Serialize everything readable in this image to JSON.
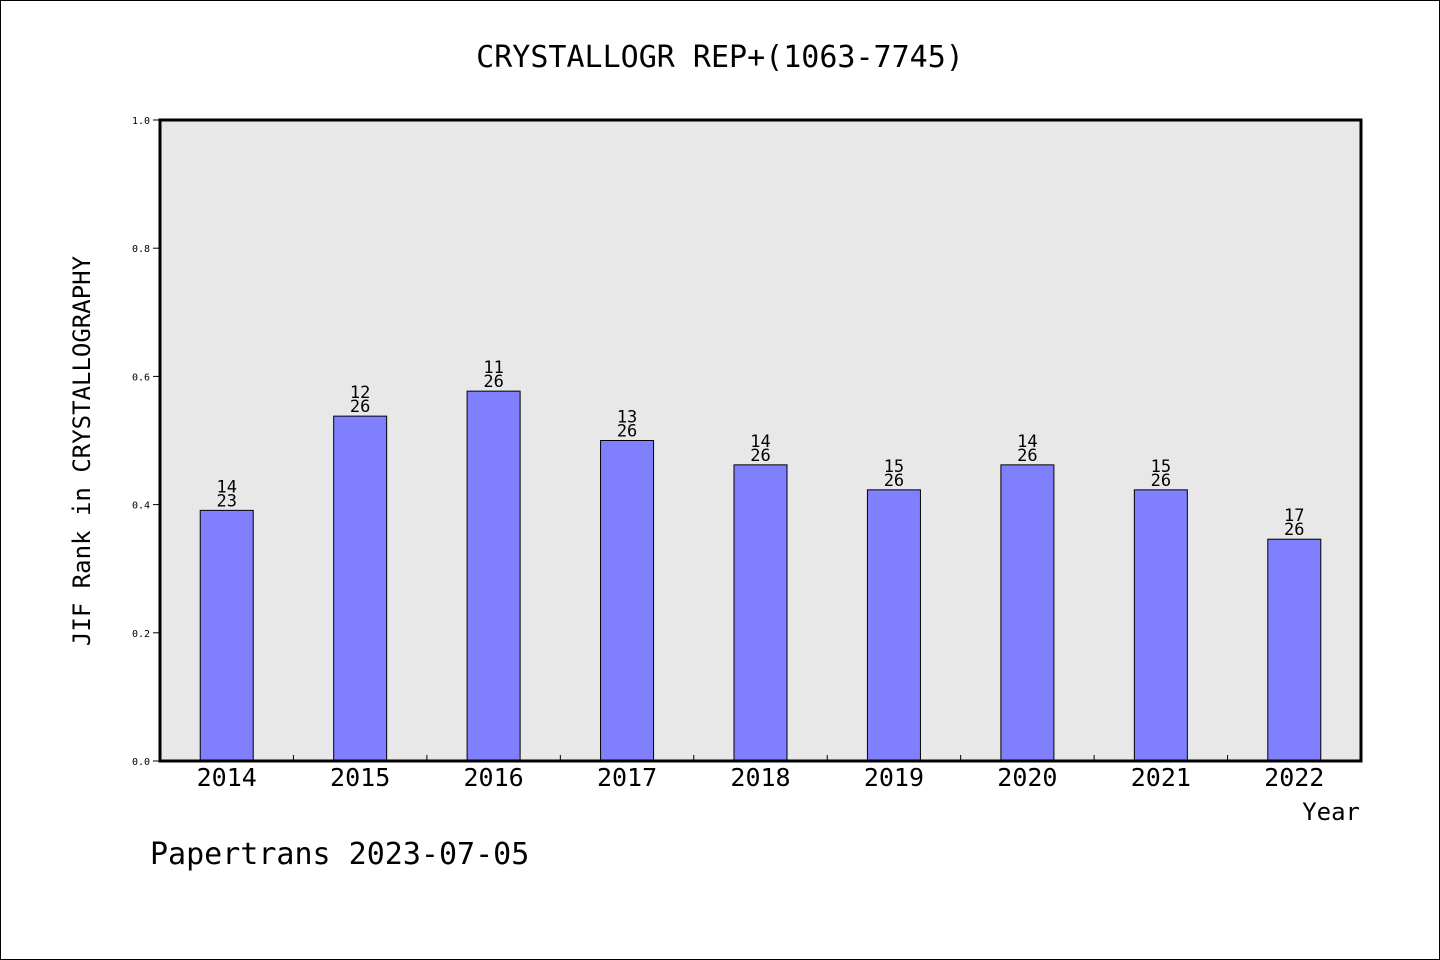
{
  "chart_data": {
    "type": "bar",
    "title": "CRYSTALLOGR REP+(1063-7745)",
    "xlabel": "Year",
    "ylabel": "JIF Rank in CRYSTALLOGRAPHY",
    "categories": [
      "2014",
      "2015",
      "2016",
      "2017",
      "2018",
      "2019",
      "2020",
      "2021",
      "2022"
    ],
    "values": [
      0.391,
      0.538,
      0.577,
      0.5,
      0.462,
      0.423,
      0.462,
      0.423,
      0.346
    ],
    "labels_top": [
      "14",
      "12",
      "11",
      "13",
      "14",
      "15",
      "14",
      "15",
      "17"
    ],
    "labels_bottom": [
      "23",
      "26",
      "26",
      "26",
      "26",
      "26",
      "26",
      "26",
      "26"
    ],
    "ylim": [
      0,
      1.0
    ],
    "yticks": [
      "0.0",
      "0.2",
      "0.4",
      "0.6",
      "0.8",
      "1.0"
    ],
    "grid": false,
    "bar_color": "#8080ff",
    "plot_background": "#e8e8e8"
  },
  "footer": {
    "text": "Papertrans 2023-07-05"
  }
}
